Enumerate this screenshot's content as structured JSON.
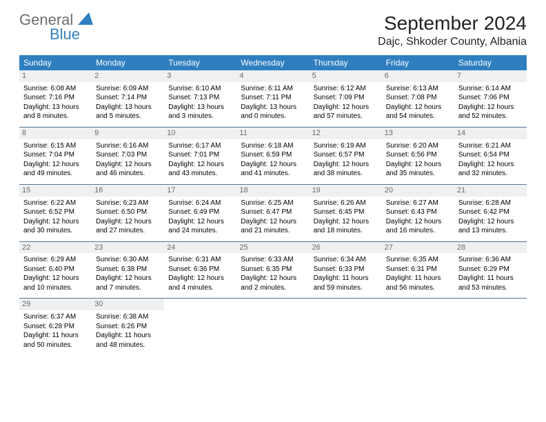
{
  "brand": {
    "general": "General",
    "blue": "Blue"
  },
  "title": "September 2024",
  "location": "Dajc, Shkoder County, Albania",
  "colors": {
    "header_bg": "#2f7fc0",
    "header_text": "#ffffff",
    "daynum_bg": "#eef0f2",
    "daynum_text": "#6a6a6a",
    "row_divider": "#5a7590",
    "logo_gray": "#6d6d6d",
    "logo_blue": "#2f7fc0"
  },
  "fonts": {
    "title_pt": 28,
    "location_pt": 16,
    "header_pt": 12,
    "cell_pt": 10
  },
  "week_headers": [
    "Sunday",
    "Monday",
    "Tuesday",
    "Wednesday",
    "Thursday",
    "Friday",
    "Saturday"
  ],
  "weeks": [
    [
      {
        "day": "1",
        "sunrise": "Sunrise: 6:08 AM",
        "sunset": "Sunset: 7:16 PM",
        "daylight": "Daylight: 13 hours and 8 minutes."
      },
      {
        "day": "2",
        "sunrise": "Sunrise: 6:09 AM",
        "sunset": "Sunset: 7:14 PM",
        "daylight": "Daylight: 13 hours and 5 minutes."
      },
      {
        "day": "3",
        "sunrise": "Sunrise: 6:10 AM",
        "sunset": "Sunset: 7:13 PM",
        "daylight": "Daylight: 13 hours and 3 minutes."
      },
      {
        "day": "4",
        "sunrise": "Sunrise: 6:11 AM",
        "sunset": "Sunset: 7:11 PM",
        "daylight": "Daylight: 13 hours and 0 minutes."
      },
      {
        "day": "5",
        "sunrise": "Sunrise: 6:12 AM",
        "sunset": "Sunset: 7:09 PM",
        "daylight": "Daylight: 12 hours and 57 minutes."
      },
      {
        "day": "6",
        "sunrise": "Sunrise: 6:13 AM",
        "sunset": "Sunset: 7:08 PM",
        "daylight": "Daylight: 12 hours and 54 minutes."
      },
      {
        "day": "7",
        "sunrise": "Sunrise: 6:14 AM",
        "sunset": "Sunset: 7:06 PM",
        "daylight": "Daylight: 12 hours and 52 minutes."
      }
    ],
    [
      {
        "day": "8",
        "sunrise": "Sunrise: 6:15 AM",
        "sunset": "Sunset: 7:04 PM",
        "daylight": "Daylight: 12 hours and 49 minutes."
      },
      {
        "day": "9",
        "sunrise": "Sunrise: 6:16 AM",
        "sunset": "Sunset: 7:03 PM",
        "daylight": "Daylight: 12 hours and 46 minutes."
      },
      {
        "day": "10",
        "sunrise": "Sunrise: 6:17 AM",
        "sunset": "Sunset: 7:01 PM",
        "daylight": "Daylight: 12 hours and 43 minutes."
      },
      {
        "day": "11",
        "sunrise": "Sunrise: 6:18 AM",
        "sunset": "Sunset: 6:59 PM",
        "daylight": "Daylight: 12 hours and 41 minutes."
      },
      {
        "day": "12",
        "sunrise": "Sunrise: 6:19 AM",
        "sunset": "Sunset: 6:57 PM",
        "daylight": "Daylight: 12 hours and 38 minutes."
      },
      {
        "day": "13",
        "sunrise": "Sunrise: 6:20 AM",
        "sunset": "Sunset: 6:56 PM",
        "daylight": "Daylight: 12 hours and 35 minutes."
      },
      {
        "day": "14",
        "sunrise": "Sunrise: 6:21 AM",
        "sunset": "Sunset: 6:54 PM",
        "daylight": "Daylight: 12 hours and 32 minutes."
      }
    ],
    [
      {
        "day": "15",
        "sunrise": "Sunrise: 6:22 AM",
        "sunset": "Sunset: 6:52 PM",
        "daylight": "Daylight: 12 hours and 30 minutes."
      },
      {
        "day": "16",
        "sunrise": "Sunrise: 6:23 AM",
        "sunset": "Sunset: 6:50 PM",
        "daylight": "Daylight: 12 hours and 27 minutes."
      },
      {
        "day": "17",
        "sunrise": "Sunrise: 6:24 AM",
        "sunset": "Sunset: 6:49 PM",
        "daylight": "Daylight: 12 hours and 24 minutes."
      },
      {
        "day": "18",
        "sunrise": "Sunrise: 6:25 AM",
        "sunset": "Sunset: 6:47 PM",
        "daylight": "Daylight: 12 hours and 21 minutes."
      },
      {
        "day": "19",
        "sunrise": "Sunrise: 6:26 AM",
        "sunset": "Sunset: 6:45 PM",
        "daylight": "Daylight: 12 hours and 18 minutes."
      },
      {
        "day": "20",
        "sunrise": "Sunrise: 6:27 AM",
        "sunset": "Sunset: 6:43 PM",
        "daylight": "Daylight: 12 hours and 16 minutes."
      },
      {
        "day": "21",
        "sunrise": "Sunrise: 6:28 AM",
        "sunset": "Sunset: 6:42 PM",
        "daylight": "Daylight: 12 hours and 13 minutes."
      }
    ],
    [
      {
        "day": "22",
        "sunrise": "Sunrise: 6:29 AM",
        "sunset": "Sunset: 6:40 PM",
        "daylight": "Daylight: 12 hours and 10 minutes."
      },
      {
        "day": "23",
        "sunrise": "Sunrise: 6:30 AM",
        "sunset": "Sunset: 6:38 PM",
        "daylight": "Daylight: 12 hours and 7 minutes."
      },
      {
        "day": "24",
        "sunrise": "Sunrise: 6:31 AM",
        "sunset": "Sunset: 6:36 PM",
        "daylight": "Daylight: 12 hours and 4 minutes."
      },
      {
        "day": "25",
        "sunrise": "Sunrise: 6:33 AM",
        "sunset": "Sunset: 6:35 PM",
        "daylight": "Daylight: 12 hours and 2 minutes."
      },
      {
        "day": "26",
        "sunrise": "Sunrise: 6:34 AM",
        "sunset": "Sunset: 6:33 PM",
        "daylight": "Daylight: 11 hours and 59 minutes."
      },
      {
        "day": "27",
        "sunrise": "Sunrise: 6:35 AM",
        "sunset": "Sunset: 6:31 PM",
        "daylight": "Daylight: 11 hours and 56 minutes."
      },
      {
        "day": "28",
        "sunrise": "Sunrise: 6:36 AM",
        "sunset": "Sunset: 6:29 PM",
        "daylight": "Daylight: 11 hours and 53 minutes."
      }
    ],
    [
      {
        "day": "29",
        "sunrise": "Sunrise: 6:37 AM",
        "sunset": "Sunset: 6:28 PM",
        "daylight": "Daylight: 11 hours and 50 minutes."
      },
      {
        "day": "30",
        "sunrise": "Sunrise: 6:38 AM",
        "sunset": "Sunset: 6:26 PM",
        "daylight": "Daylight: 11 hours and 48 minutes."
      },
      null,
      null,
      null,
      null,
      null
    ]
  ]
}
